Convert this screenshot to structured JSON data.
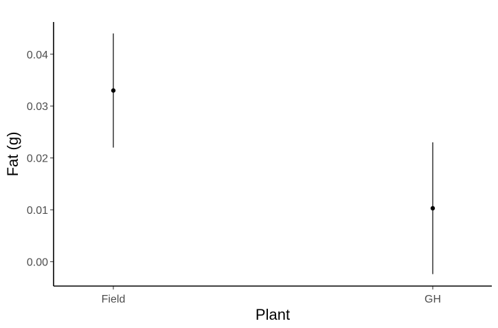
{
  "chart_data": {
    "type": "scatter",
    "title": "",
    "xlabel": "Plant",
    "ylabel": "Fat (g)",
    "categories": [
      "Field",
      "GH"
    ],
    "series": [
      {
        "points": [
          {
            "x": "Field",
            "y": 0.033,
            "lower": 0.022,
            "upper": 0.044
          },
          {
            "x": "GH",
            "y": 0.0103,
            "lower": -0.0024,
            "upper": 0.023
          }
        ]
      }
    ],
    "yticks": [
      0.0,
      0.01,
      0.02,
      0.03,
      0.04
    ],
    "ytick_labels": [
      "0.00",
      "0.01",
      "0.02",
      "0.03",
      "0.04"
    ],
    "ylim": [
      -0.0047,
      0.0462
    ],
    "grid": false,
    "legend": "none",
    "colors": {
      "point": "#000000",
      "axis": "#000000",
      "tick_text": "#4d4d4d"
    }
  }
}
